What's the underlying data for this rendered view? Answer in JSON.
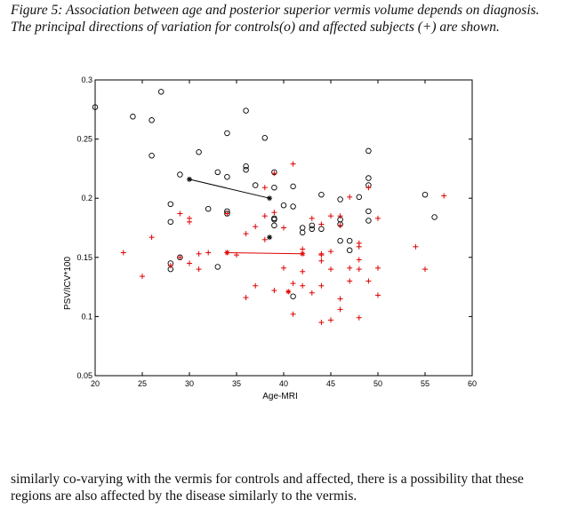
{
  "caption": {
    "text": "Figure 5: Association between age and posterior superior vermis volume depends on diagnosis. The principal directions of variation for controls(o) and affected subjects (+) are shown."
  },
  "paragraph": {
    "text": "similarly co-varying with the vermis for controls and affected, there is a possibility that these regions are also affected by the disease similarly to the vermis."
  },
  "chart_data": {
    "type": "scatter",
    "title": "",
    "xlabel": "Age-MRI",
    "ylabel": "PSV/ICV*100",
    "xlim": [
      20,
      60
    ],
    "ylim": [
      0.05,
      0.3
    ],
    "xticks": [
      "20",
      "25",
      "30",
      "35",
      "40",
      "45",
      "50",
      "55",
      "60"
    ],
    "yticks": [
      "0.05",
      "0.1",
      "0.15",
      "0.2",
      "0.25",
      "0.3"
    ],
    "grid": false,
    "colors": {
      "controls": "#000000",
      "affected": "#e00000"
    },
    "series": [
      {
        "marker": "o",
        "color": "#000000",
        "points": [
          [
            20,
            0.277
          ],
          [
            24,
            0.269
          ],
          [
            26,
            0.266
          ],
          [
            26,
            0.236
          ],
          [
            27,
            0.29
          ],
          [
            28,
            0.195
          ],
          [
            28,
            0.18
          ],
          [
            28,
            0.14
          ],
          [
            28,
            0.145
          ],
          [
            29,
            0.22
          ],
          [
            29,
            0.15
          ],
          [
            31,
            0.239
          ],
          [
            32,
            0.191
          ],
          [
            33,
            0.142
          ],
          [
            33,
            0.222
          ],
          [
            34,
            0.255
          ],
          [
            34,
            0.218
          ],
          [
            34,
            0.189
          ],
          [
            34,
            0.187
          ],
          [
            36,
            0.274
          ],
          [
            36,
            0.227
          ],
          [
            36,
            0.224
          ],
          [
            37,
            0.211
          ],
          [
            38,
            0.251
          ],
          [
            39,
            0.222
          ],
          [
            39,
            0.209
          ],
          [
            39,
            0.183
          ],
          [
            39,
            0.182
          ],
          [
            39,
            0.177
          ],
          [
            40,
            0.194
          ],
          [
            41,
            0.21
          ],
          [
            41,
            0.193
          ],
          [
            41,
            0.117
          ],
          [
            42,
            0.175
          ],
          [
            42,
            0.171
          ],
          [
            43,
            0.174
          ],
          [
            43,
            0.177
          ],
          [
            44,
            0.203
          ],
          [
            44,
            0.174
          ],
          [
            46,
            0.199
          ],
          [
            46,
            0.182
          ],
          [
            46,
            0.178
          ],
          [
            46,
            0.164
          ],
          [
            47,
            0.164
          ],
          [
            47,
            0.156
          ],
          [
            48,
            0.201
          ],
          [
            49,
            0.24
          ],
          [
            49,
            0.217
          ],
          [
            49,
            0.211
          ],
          [
            49,
            0.189
          ],
          [
            49,
            0.181
          ],
          [
            55,
            0.203
          ],
          [
            56,
            0.184
          ]
        ]
      },
      {
        "marker": "+",
        "color": "#e00000",
        "points": [
          [
            23,
            0.154
          ],
          [
            25,
            0.134
          ],
          [
            26,
            0.167
          ],
          [
            28,
            0.143
          ],
          [
            29,
            0.187
          ],
          [
            29,
            0.15
          ],
          [
            30,
            0.183
          ],
          [
            30,
            0.18
          ],
          [
            30,
            0.145
          ],
          [
            31,
            0.153
          ],
          [
            31,
            0.14
          ],
          [
            32,
            0.154
          ],
          [
            34,
            0.187
          ],
          [
            34,
            0.154
          ],
          [
            35,
            0.152
          ],
          [
            36,
            0.17
          ],
          [
            36,
            0.116
          ],
          [
            37,
            0.176
          ],
          [
            37,
            0.126
          ],
          [
            38,
            0.209
          ],
          [
            38,
            0.185
          ],
          [
            38,
            0.165
          ],
          [
            39,
            0.221
          ],
          [
            39,
            0.188
          ],
          [
            39,
            0.122
          ],
          [
            40,
            0.175
          ],
          [
            40,
            0.141
          ],
          [
            41,
            0.229
          ],
          [
            41,
            0.128
          ],
          [
            41,
            0.102
          ],
          [
            42,
            0.157
          ],
          [
            42,
            0.138
          ],
          [
            42,
            0.126
          ],
          [
            43,
            0.183
          ],
          [
            43,
            0.12
          ],
          [
            44,
            0.178
          ],
          [
            44,
            0.153
          ],
          [
            44,
            0.152
          ],
          [
            44,
            0.147
          ],
          [
            44,
            0.126
          ],
          [
            44,
            0.095
          ],
          [
            45,
            0.185
          ],
          [
            45,
            0.155
          ],
          [
            45,
            0.14
          ],
          [
            45,
            0.097
          ],
          [
            46,
            0.185
          ],
          [
            46,
            0.177
          ],
          [
            46,
            0.115
          ],
          [
            46,
            0.106
          ],
          [
            47,
            0.201
          ],
          [
            47,
            0.141
          ],
          [
            47,
            0.13
          ],
          [
            48,
            0.162
          ],
          [
            48,
            0.159
          ],
          [
            48,
            0.148
          ],
          [
            48,
            0.14
          ],
          [
            48,
            0.099
          ],
          [
            49,
            0.209
          ],
          [
            49,
            0.13
          ],
          [
            50,
            0.183
          ],
          [
            50,
            0.141
          ],
          [
            50,
            0.118
          ],
          [
            54,
            0.159
          ],
          [
            55,
            0.14
          ],
          [
            57,
            0.202
          ]
        ]
      }
    ],
    "principal_directions": [
      {
        "color": "#000000",
        "from": [
          30,
          0.216
        ],
        "to": [
          38.5,
          0.2
        ],
        "center": [
          38.5,
          0.167
        ]
      },
      {
        "color": "#e00000",
        "from": [
          34,
          0.154
        ],
        "to": [
          42,
          0.153
        ],
        "center": [
          40.5,
          0.121
        ]
      }
    ]
  }
}
